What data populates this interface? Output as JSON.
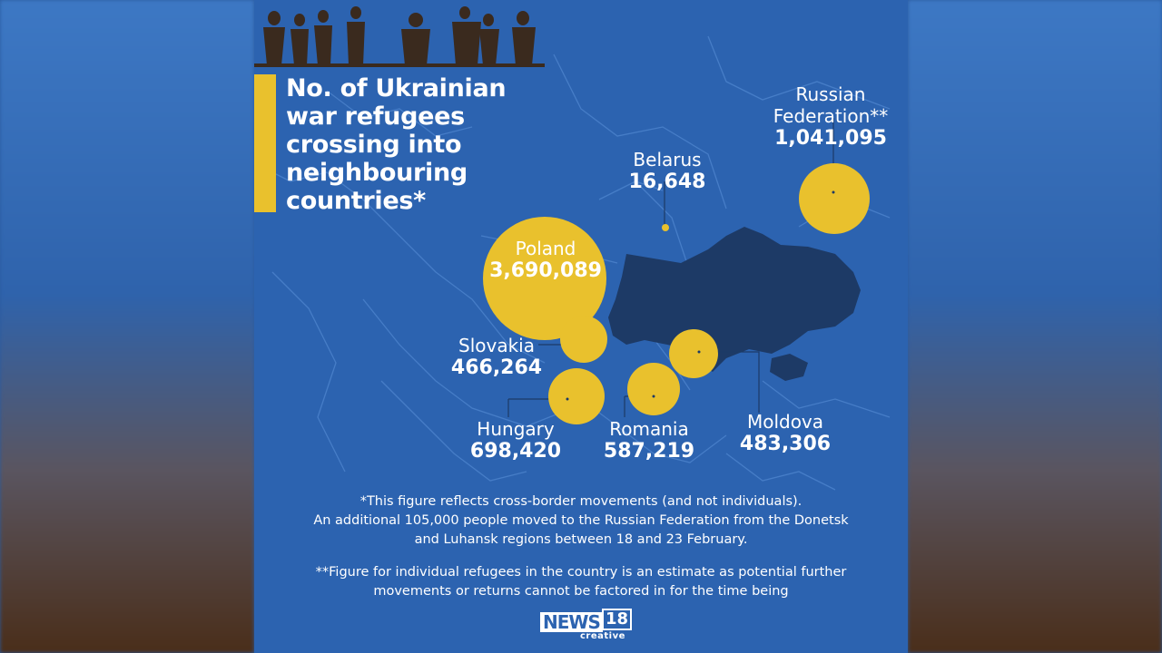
{
  "title": "No. of Ukrainian war refugees crossing into neighbouring countries*",
  "countries": {
    "russia": {
      "name_line1": "Russian",
      "name_line2": "Federation**",
      "value": "1,041,095"
    },
    "belarus": {
      "name": "Belarus",
      "value": "16,648"
    },
    "poland": {
      "name": "Poland",
      "value": "3,690,089"
    },
    "slovakia": {
      "name": "Slovakia",
      "value": "466,264"
    },
    "hungary": {
      "name": "Hungary",
      "value": "698,420"
    },
    "romania": {
      "name": "Romania",
      "value": "587,219"
    },
    "moldova": {
      "name": "Moldova",
      "value": "483,306"
    }
  },
  "footnotes": {
    "note1_line1": "*This figure reflects cross-border movements (and not individuals).",
    "note1_line2": "An additional 105,000 people moved to the Russian Federation from the Donetsk",
    "note1_line3": "and Luhansk regions between 18 and 23 February.",
    "note2_line1": "**Figure for individual refugees in the country is an estimate as potential further",
    "note2_line2": "movements or returns cannot be factored in for the time being"
  },
  "logo": {
    "brand": "NEWS",
    "number": "18",
    "sub": "creative"
  },
  "colors": {
    "background": "#2c63b0",
    "bubble": "#e9c12d",
    "ukraine": "#1d3a66",
    "text": "#ffffff"
  }
}
